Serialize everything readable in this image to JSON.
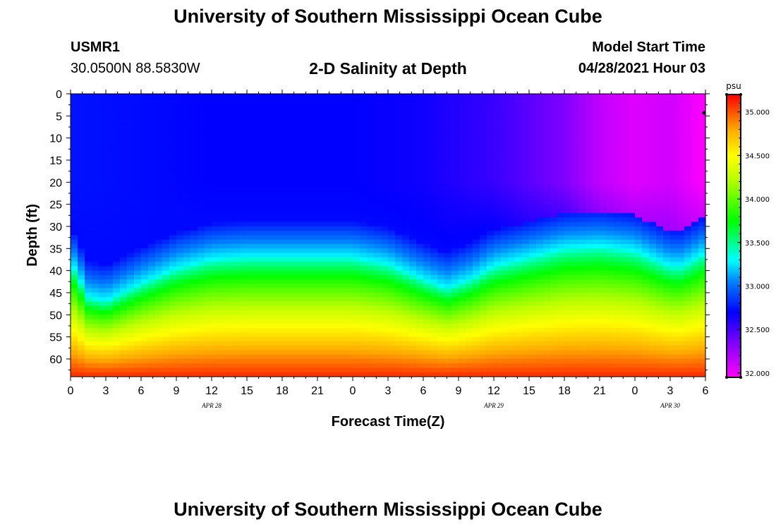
{
  "header": {
    "title": "University of Southern Mississippi Ocean Cube",
    "station_id": "USMR1",
    "location": "30.0500N  88.5830W",
    "subtitle": "2-D Salinity at Depth",
    "model_start_label": "Model Start Time",
    "model_start_value": "04/28/2021 Hour 03"
  },
  "footer": {
    "title": "University of Southern Mississippi Ocean Cube"
  },
  "chart_data": {
    "type": "heatmap",
    "title": "2-D Salinity at Depth",
    "xlabel": "Forecast Time(Z)",
    "ylabel": "Depth (ft)",
    "x_tick_labels": [
      "0",
      "3",
      "6",
      "9",
      "12",
      "15",
      "18",
      "21",
      "0",
      "3",
      "6",
      "9",
      "12",
      "15",
      "18",
      "21",
      "0",
      "3",
      "6"
    ],
    "x_range_hours": [
      0,
      54
    ],
    "date_labels": [
      {
        "text": "APR 28",
        "hour": 12
      },
      {
        "text": "APR 29",
        "hour": 36
      },
      {
        "text": "APR 30",
        "hour": 51
      }
    ],
    "y_tick_labels": [
      "0",
      "5",
      "10",
      "15",
      "20",
      "25",
      "30",
      "35",
      "40",
      "45",
      "50",
      "55",
      "60"
    ],
    "y_range_ft": [
      0,
      64
    ],
    "y_inverted": true,
    "colorbar": {
      "unit": "psu",
      "range": [
        31.95,
        35.2
      ],
      "tick_values": [
        32.0,
        32.5,
        33.0,
        33.5,
        34.0,
        34.5,
        35.0
      ],
      "tick_labels": [
        "32.000",
        "32.500",
        "33.000",
        "33.500",
        "34.000",
        "34.500",
        "35.000"
      ]
    },
    "colormap": [
      {
        "value": 31.95,
        "color": "#ff00ff"
      },
      {
        "value": 32.35,
        "color": "#8000ff"
      },
      {
        "value": 32.7,
        "color": "#0000ff"
      },
      {
        "value": 33.05,
        "color": "#0080ff"
      },
      {
        "value": 33.3,
        "color": "#00ffff"
      },
      {
        "value": 33.75,
        "color": "#00ff00"
      },
      {
        "value": 34.25,
        "color": "#c0ff00"
      },
      {
        "value": 34.5,
        "color": "#ffff00"
      },
      {
        "value": 34.8,
        "color": "#ffaa00"
      },
      {
        "value": 35.2,
        "color": "#ff0000"
      }
    ],
    "halocline": {
      "description": "depth (ft) where salinity is ~33.3 psu",
      "hours": [
        0,
        1.5,
        3,
        4.5,
        6,
        9,
        12,
        15,
        18,
        21,
        24,
        27,
        30,
        32,
        34,
        36,
        39,
        42,
        45,
        48,
        51,
        52,
        54
      ],
      "depth_ft": [
        38,
        46,
        47,
        45,
        43,
        39.5,
        37.5,
        37,
        37,
        37,
        37,
        38.5,
        42,
        44,
        42,
        39,
        37,
        35,
        34.5,
        35.5,
        39,
        39,
        36
      ]
    },
    "surface_salinity": {
      "description": "near-surface salinity (psu), freshest to saltiest",
      "hours": [
        0,
        12,
        24,
        30,
        36,
        42,
        45,
        48,
        51,
        54
      ],
      "psu": [
        32.75,
        32.7,
        32.7,
        32.66,
        32.55,
        32.35,
        32.15,
        32.05,
        32.1,
        31.95
      ]
    },
    "bottom_salinity_psu": 35.15,
    "surface_max_depth_ft": 20
  }
}
